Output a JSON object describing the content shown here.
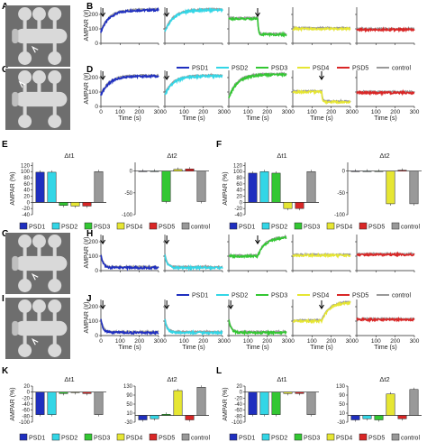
{
  "panel_labels": [
    "A",
    "B",
    "C",
    "D",
    "E",
    "F",
    "G",
    "H",
    "I",
    "J",
    "K",
    "L"
  ],
  "colors": {
    "PSD1": "#1f2fbf",
    "PSD2": "#33d6e6",
    "PSD3": "#33c733",
    "PSD4": "#e6e633",
    "PSD5": "#d92626",
    "control": "#999999",
    "spine_bg": "#6e6e6e",
    "spine_fg": "#d9d9d9",
    "spine_shadow": "#bfbfbf"
  },
  "legend": {
    "entries": [
      "PSD1",
      "PSD2",
      "PSD3",
      "PSD4",
      "PSD5",
      "control"
    ]
  },
  "timecourse_axes": {
    "ylabel": "AMPAR (#)",
    "xlabel": "Time (s)",
    "xticks": [
      0,
      100,
      200,
      300
    ],
    "yticks": [
      0,
      100,
      200
    ],
    "ylim": [
      0,
      250
    ],
    "xlim": [
      0,
      300
    ]
  },
  "rows": [
    {
      "label": "B",
      "lines": [
        {
          "psd": "PSD1",
          "shape": "rise",
          "a": 80,
          "b": 230,
          "step": null,
          "mark": 10
        },
        {
          "psd": "PSD2",
          "shape": "rise",
          "a": 80,
          "b": 230,
          "step": null,
          "mark": 10
        },
        {
          "psd": "PSD3",
          "shape": "flat_drop",
          "a": 170,
          "b": 60,
          "step": 150,
          "mark": 150
        },
        {
          "psd": "PSD4",
          "shape": "flat",
          "a": 100,
          "b": 100,
          "step": null,
          "mark": null
        },
        {
          "psd": "PSD5",
          "shape": "flat",
          "a": 95,
          "b": 95,
          "step": null,
          "mark": null
        }
      ]
    },
    {
      "label": "D",
      "lines": [
        {
          "psd": "PSD1",
          "shape": "rise",
          "a": 80,
          "b": 210,
          "step": null,
          "mark": 10
        },
        {
          "psd": "PSD2",
          "shape": "rise",
          "a": 80,
          "b": 210,
          "step": null,
          "mark": 10
        },
        {
          "psd": "PSD3",
          "shape": "rise",
          "a": 60,
          "b": 220,
          "step": null,
          "mark": null
        },
        {
          "psd": "PSD4",
          "shape": "flat_drop",
          "a": 100,
          "b": 30,
          "step": 150,
          "mark": 150
        },
        {
          "psd": "PSD5",
          "shape": "flat",
          "a": 95,
          "b": 95,
          "step": null,
          "mark": null
        }
      ]
    },
    {
      "label": "H",
      "lines": [
        {
          "psd": "PSD1",
          "shape": "decay",
          "a": 110,
          "b": 20,
          "step": null,
          "mark": 10
        },
        {
          "psd": "PSD2",
          "shape": "decay",
          "a": 110,
          "b": 20,
          "step": null,
          "mark": 10
        },
        {
          "psd": "PSD3",
          "shape": "flat_rise",
          "a": 100,
          "b": 230,
          "step": 150,
          "mark": 150
        },
        {
          "psd": "PSD4",
          "shape": "flat",
          "a": 105,
          "b": 105,
          "step": null,
          "mark": null
        },
        {
          "psd": "PSD5",
          "shape": "flat",
          "a": 110,
          "b": 110,
          "step": null,
          "mark": null
        }
      ]
    },
    {
      "label": "J",
      "lines": [
        {
          "psd": "PSD1",
          "shape": "decay",
          "a": 110,
          "b": 20,
          "step": null,
          "mark": 10
        },
        {
          "psd": "PSD2",
          "shape": "decay",
          "a": 110,
          "b": 20,
          "step": null,
          "mark": 10
        },
        {
          "psd": "PSD3",
          "shape": "decay",
          "a": 110,
          "b": 20,
          "step": null,
          "mark": 10
        },
        {
          "psd": "PSD4",
          "shape": "flat_rise",
          "a": 100,
          "b": 230,
          "step": 150,
          "mark": 150
        },
        {
          "psd": "PSD5",
          "shape": "flat",
          "a": 110,
          "b": 110,
          "step": null,
          "mark": null
        }
      ]
    }
  ],
  "bar_titles": {
    "dt1": "Δt1",
    "dt2": "Δt2"
  },
  "bar_ylabel": "AMPAR (%)",
  "bar_legend": {
    "entries": [
      "PSD1",
      "PSD2",
      "PSD3",
      "PSD4",
      "PSD5",
      "control"
    ]
  },
  "chart_data": [
    {
      "type": "bar",
      "panel": "E",
      "title": "Δt1",
      "categories": [
        "PSD1",
        "PSD2",
        "PSD3",
        "PSD4",
        "PSD5",
        "control"
      ],
      "values": [
        98,
        98,
        -10,
        -12,
        -12,
        100
      ],
      "ylim": [
        -40,
        130
      ],
      "yticks": [
        -40,
        -20,
        0,
        20,
        40,
        60,
        80,
        100,
        120
      ]
    },
    {
      "type": "bar",
      "panel": "E",
      "title": "Δt2",
      "categories": [
        "PSD1",
        "PSD2",
        "PSD3",
        "PSD4",
        "PSD5",
        "control"
      ],
      "values": [
        0,
        0,
        -70,
        4,
        5,
        -70
      ],
      "ylim": [
        -100,
        20
      ],
      "yticks": [
        -100,
        -50,
        0
      ]
    },
    {
      "type": "bar",
      "panel": "F",
      "title": "Δt1",
      "categories": [
        "PSD1",
        "PSD2",
        "PSD3",
        "PSD4",
        "PSD5",
        "control"
      ],
      "values": [
        95,
        100,
        95,
        -20,
        -20,
        100
      ],
      "ylim": [
        -40,
        130
      ],
      "yticks": [
        -40,
        -20,
        0,
        20,
        40,
        60,
        80,
        100,
        120
      ]
    },
    {
      "type": "bar",
      "panel": "F",
      "title": "Δt2",
      "categories": [
        "PSD1",
        "PSD2",
        "PSD3",
        "PSD4",
        "PSD5",
        "control"
      ],
      "values": [
        0,
        0,
        0,
        -75,
        2,
        -75
      ],
      "ylim": [
        -100,
        20
      ],
      "yticks": [
        -100,
        -50,
        0
      ]
    },
    {
      "type": "bar",
      "panel": "K",
      "title": "Δt1",
      "categories": [
        "PSD1",
        "PSD2",
        "PSD3",
        "PSD4",
        "PSD5",
        "control"
      ],
      "values": [
        -75,
        -75,
        -5,
        -2,
        -5,
        -75
      ],
      "ylim": [
        -100,
        20
      ],
      "yticks": [
        -100,
        -80,
        -60,
        -40,
        -20,
        0,
        20
      ]
    },
    {
      "type": "bar",
      "panel": "K",
      "title": "Δt2",
      "categories": [
        "PSD1",
        "PSD2",
        "PSD3",
        "PSD4",
        "PSD5",
        "control"
      ],
      "values": [
        -20,
        -15,
        5,
        110,
        -20,
        125
      ],
      "ylim": [
        -30,
        130
      ],
      "yticks": [
        -30,
        10,
        50,
        90,
        130
      ]
    },
    {
      "type": "bar",
      "panel": "L",
      "title": "Δt1",
      "categories": [
        "PSD1",
        "PSD2",
        "PSD3",
        "PSD4",
        "PSD5",
        "control"
      ],
      "values": [
        -75,
        -75,
        -75,
        -5,
        -5,
        -75
      ],
      "ylim": [
        -100,
        20
      ],
      "yticks": [
        -100,
        -80,
        -60,
        -40,
        -20,
        0,
        20
      ]
    },
    {
      "type": "bar",
      "panel": "L",
      "title": "Δt2",
      "categories": [
        "PSD1",
        "PSD2",
        "PSD3",
        "PSD4",
        "PSD5",
        "control"
      ],
      "values": [
        -20,
        -15,
        -20,
        95,
        -15,
        115
      ],
      "ylim": [
        -30,
        130
      ],
      "yticks": [
        -30,
        10,
        50,
        90,
        130
      ]
    }
  ]
}
